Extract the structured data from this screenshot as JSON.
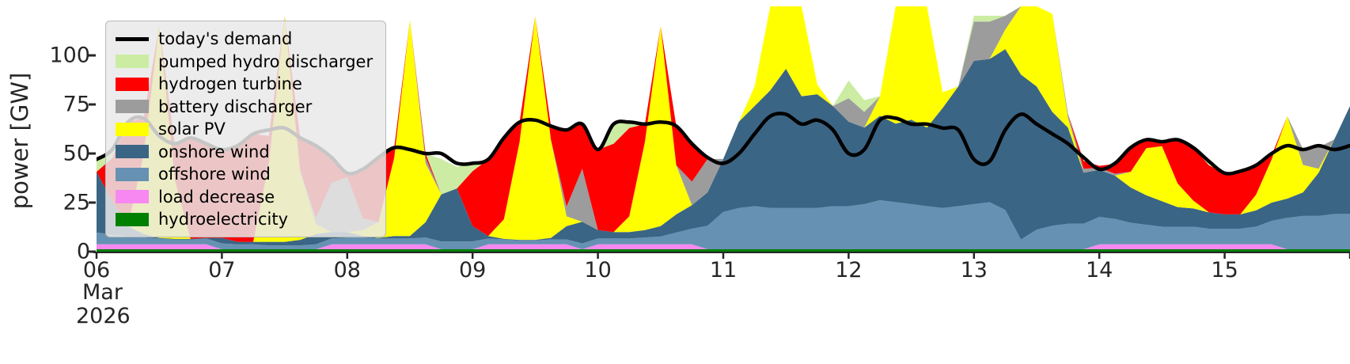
{
  "chart_data": {
    "type": "area",
    "title": "",
    "ylabel": "power [GW]",
    "xlabel": "",
    "month_label": "Mar",
    "year_label": "2026",
    "ylim": [
      0,
      125
    ],
    "xlim_days": [
      6,
      16
    ],
    "grid": false,
    "legend_position": "upper left",
    "y_ticks": [
      0,
      25,
      50,
      75,
      100
    ],
    "x_ticks": [
      {
        "day": 6,
        "label": "06"
      },
      {
        "day": 7,
        "label": "07"
      },
      {
        "day": 8,
        "label": "08"
      },
      {
        "day": 9,
        "label": "09"
      },
      {
        "day": 10,
        "label": "10"
      },
      {
        "day": 11,
        "label": "11"
      },
      {
        "day": 12,
        "label": "12"
      },
      {
        "day": 13,
        "label": "13"
      },
      {
        "day": 14,
        "label": "14"
      },
      {
        "day": 15,
        "label": "15"
      },
      {
        "day": 16,
        "label": ""
      }
    ],
    "x_start_day": 6,
    "x_step_days": 0.125,
    "demand": {
      "name": "today's demand",
      "color": "#000000",
      "line_width": 4.5,
      "values": [
        47,
        52,
        66,
        68,
        59,
        55,
        58,
        55,
        52,
        54,
        60,
        62,
        63,
        58,
        54,
        48,
        40,
        42,
        48,
        53,
        52,
        50,
        50,
        45,
        45,
        47,
        58,
        66,
        67,
        64,
        62,
        65,
        52,
        65,
        66,
        65,
        66,
        64,
        55,
        48,
        45,
        50,
        60,
        69,
        70,
        65,
        67,
        62,
        50,
        52,
        67,
        68,
        65,
        65,
        63,
        62,
        47,
        46,
        62,
        70,
        65,
        60,
        55,
        48,
        42,
        45,
        53,
        57,
        56,
        57,
        53,
        46,
        40,
        41,
        44,
        50,
        54,
        52,
        54,
        52,
        54
      ]
    },
    "series": [
      {
        "name": "hydroelectricity",
        "color": "#008000",
        "values": [
          1.2,
          1.2,
          1.2,
          1.2,
          1.2,
          1.2,
          1.2,
          1.2,
          1.2,
          1.2,
          1.2,
          1.2,
          1.2,
          1.2,
          1.2,
          1.2,
          1.2,
          1.2,
          1.2,
          1.2,
          1.2,
          1.2,
          1.2,
          1.2,
          1.2,
          1.2,
          1.2,
          1.2,
          1.2,
          1.2,
          1.2,
          1.2,
          1.2,
          1.2,
          1.2,
          1.2,
          1.2,
          1.2,
          1.2,
          1.2,
          1.2,
          1.2,
          1.2,
          1.2,
          1.2,
          1.2,
          1.2,
          1.2,
          1.2,
          1.2,
          1.2,
          1.2,
          1.2,
          1.2,
          1.2,
          1.2,
          1.2,
          1.2,
          1.2,
          1.2,
          1.2,
          1.2,
          1.2,
          1.2,
          1.2,
          1.2,
          1.2,
          1.2,
          1.2,
          1.2,
          1.2,
          1.2,
          1.2,
          1.2,
          1.2,
          1.2,
          1.2,
          1.2,
          1.2,
          1.2,
          1.2
        ]
      },
      {
        "name": "load decrease",
        "color": "#f788f2",
        "values": [
          2.5,
          2.5,
          2.5,
          2.5,
          2.5,
          2.5,
          2.5,
          2.5,
          0,
          0,
          0,
          0,
          0,
          0,
          0,
          2.5,
          2.5,
          2.5,
          2.5,
          2.5,
          2.5,
          2.5,
          0,
          0,
          0,
          2.5,
          2.5,
          2.5,
          2.5,
          2.5,
          2.5,
          0,
          2.5,
          2.5,
          2.5,
          2.5,
          2.5,
          2.5,
          2.5,
          0,
          0,
          0,
          0,
          0,
          0,
          0,
          0,
          0,
          0,
          0,
          0,
          0,
          0,
          0,
          0,
          0,
          0,
          0,
          0,
          0,
          0,
          0,
          0,
          0,
          2.5,
          2.5,
          2.5,
          2.5,
          2.5,
          2.5,
          2.5,
          2.5,
          2.5,
          2.5,
          2.5,
          2.5,
          0,
          0,
          0,
          0,
          0
        ]
      },
      {
        "name": "offshore wind",
        "color": "#6691b2",
        "values": [
          6,
          5,
          4,
          3.5,
          3,
          2.5,
          2.5,
          3,
          3,
          2.5,
          2.5,
          2,
          2,
          2,
          2.5,
          3,
          3.5,
          3.5,
          3,
          3,
          3,
          3.5,
          4,
          4,
          4,
          3,
          2.5,
          2,
          2,
          2.5,
          2.5,
          3,
          3,
          3,
          3,
          3.5,
          4,
          6,
          8,
          12,
          19,
          21,
          22,
          21,
          21,
          21,
          21,
          22,
          22,
          23,
          25,
          24,
          23,
          22,
          21,
          22,
          23,
          24,
          20,
          5,
          10,
          12,
          13,
          13,
          14,
          13,
          11,
          10,
          9,
          9,
          9,
          8,
          8,
          8,
          9,
          12,
          16,
          17,
          17,
          18,
          18
        ]
      },
      {
        "name": "onshore wind",
        "color": "#3b6585",
        "values": [
          31,
          17,
          5.3,
          1.8,
          0.3,
          0.3,
          0.3,
          0.3,
          2.8,
          1.3,
          1.3,
          1.8,
          1.8,
          2.8,
          5.3,
          3.3,
          2.8,
          0.8,
          0.3,
          1.3,
          1.3,
          7.8,
          24,
          27,
          7.8,
          1.3,
          0.3,
          0.3,
          0.3,
          0.8,
          6.8,
          11,
          4.3,
          3.3,
          3.3,
          3.8,
          5.3,
          9.3,
          12,
          17,
          27,
          44,
          51,
          60,
          71,
          57,
          58,
          51,
          43,
          39,
          43,
          40,
          43,
          40,
          51,
          61,
          73,
          73,
          82,
          84,
          73,
          58,
          49,
          26,
          24,
          22,
          18,
          15,
          13,
          10,
          9.3,
          8.3,
          7.3,
          7.3,
          8.3,
          9.3,
          9.8,
          12,
          22,
          38,
          55
        ]
      },
      {
        "name": "solar PV",
        "color": "#ffff00",
        "values": [
          0,
          0,
          0,
          40,
          108,
          30,
          0,
          0,
          0,
          0,
          0,
          40,
          115,
          35,
          5,
          0,
          0,
          3,
          8,
          40,
          110,
          30,
          0,
          0,
          0,
          0,
          10,
          50,
          114,
          50,
          5,
          0,
          0,
          0,
          8,
          45,
          102,
          25,
          0,
          0,
          0,
          0,
          10,
          70,
          95,
          65,
          5,
          0,
          0,
          0,
          10,
          70,
          95,
          70,
          8,
          0,
          0,
          0,
          10,
          55,
          90,
          50,
          5,
          0,
          0,
          0,
          8,
          24,
          28,
          12,
          4,
          0,
          0,
          0,
          8,
          22,
          42,
          14,
          2,
          0,
          0
        ]
      },
      {
        "name": "battery discharger",
        "color": "#9c9c9c",
        "values": [
          0,
          0,
          0,
          0,
          0,
          0,
          0,
          0,
          0,
          0,
          0,
          0,
          0,
          0,
          3,
          25,
          28,
          6,
          0,
          0,
          0,
          3,
          0,
          0,
          0,
          0,
          0,
          0,
          0,
          0,
          5,
          27,
          0,
          0,
          0,
          0,
          0,
          0,
          12,
          17,
          0,
          0,
          0,
          0,
          0,
          0,
          0,
          0,
          12,
          8,
          0,
          0,
          0,
          0,
          0,
          0,
          20,
          19,
          7,
          0,
          0,
          0,
          2,
          2,
          1,
          1,
          0,
          0,
          0,
          0,
          0,
          0,
          0,
          0,
          0,
          0,
          0,
          8,
          11,
          0,
          0
        ]
      },
      {
        "name": "hydrogen turbine",
        "color": "#ff0000",
        "values": [
          0,
          22,
          53,
          19,
          0,
          18,
          51,
          48,
          45,
          49,
          55,
          14,
          0,
          17,
          37,
          13,
          2,
          25,
          33,
          5,
          0,
          2,
          0,
          0,
          28,
          39,
          41,
          10,
          0,
          7,
          39,
          23,
          41,
          45,
          45,
          9,
          0,
          20,
          19,
          0,
          0,
          0,
          0,
          0,
          0,
          0,
          0,
          0,
          0,
          0,
          0,
          0,
          0,
          0,
          0,
          0,
          0,
          0,
          0,
          0,
          0,
          0,
          0,
          4,
          1,
          5,
          12,
          4,
          2,
          22,
          27,
          24,
          21,
          22,
          15,
          2,
          0,
          0,
          0,
          0,
          0
        ]
      },
      {
        "name": "pumped hydro discharger",
        "color": "#cbeca2",
        "values": [
          6,
          4,
          0,
          0,
          0,
          0,
          0,
          0,
          0,
          0,
          0,
          0,
          0,
          0,
          0,
          0,
          0,
          0,
          0,
          0,
          0,
          0,
          18,
          11,
          4,
          0,
          0,
          0,
          0,
          0,
          0,
          0,
          0,
          10,
          3,
          0,
          0,
          0,
          0,
          0,
          0,
          0,
          0,
          0,
          0,
          0,
          0,
          0,
          9,
          6,
          0,
          0,
          0,
          0,
          0,
          0,
          3,
          3,
          0,
          0,
          0,
          0,
          0,
          0,
          0,
          0,
          0,
          0,
          0,
          0,
          0,
          2,
          0,
          0,
          0,
          0,
          0,
          0,
          0,
          0,
          0
        ]
      }
    ],
    "legend": [
      {
        "name": "today's demand",
        "color": "#000000",
        "kind": "line"
      },
      {
        "name": "pumped hydro discharger",
        "color": "#cbeca2",
        "kind": "patch"
      },
      {
        "name": "hydrogen turbine",
        "color": "#ff0000",
        "kind": "patch"
      },
      {
        "name": "battery discharger",
        "color": "#9c9c9c",
        "kind": "patch"
      },
      {
        "name": "solar PV",
        "color": "#ffff00",
        "kind": "patch"
      },
      {
        "name": "onshore wind",
        "color": "#3b6585",
        "kind": "patch"
      },
      {
        "name": "offshore wind",
        "color": "#6691b2",
        "kind": "patch"
      },
      {
        "name": "load decrease",
        "color": "#f788f2",
        "kind": "patch"
      },
      {
        "name": "hydroelectricity",
        "color": "#008000",
        "kind": "patch"
      }
    ],
    "axis_color": "#262626"
  }
}
